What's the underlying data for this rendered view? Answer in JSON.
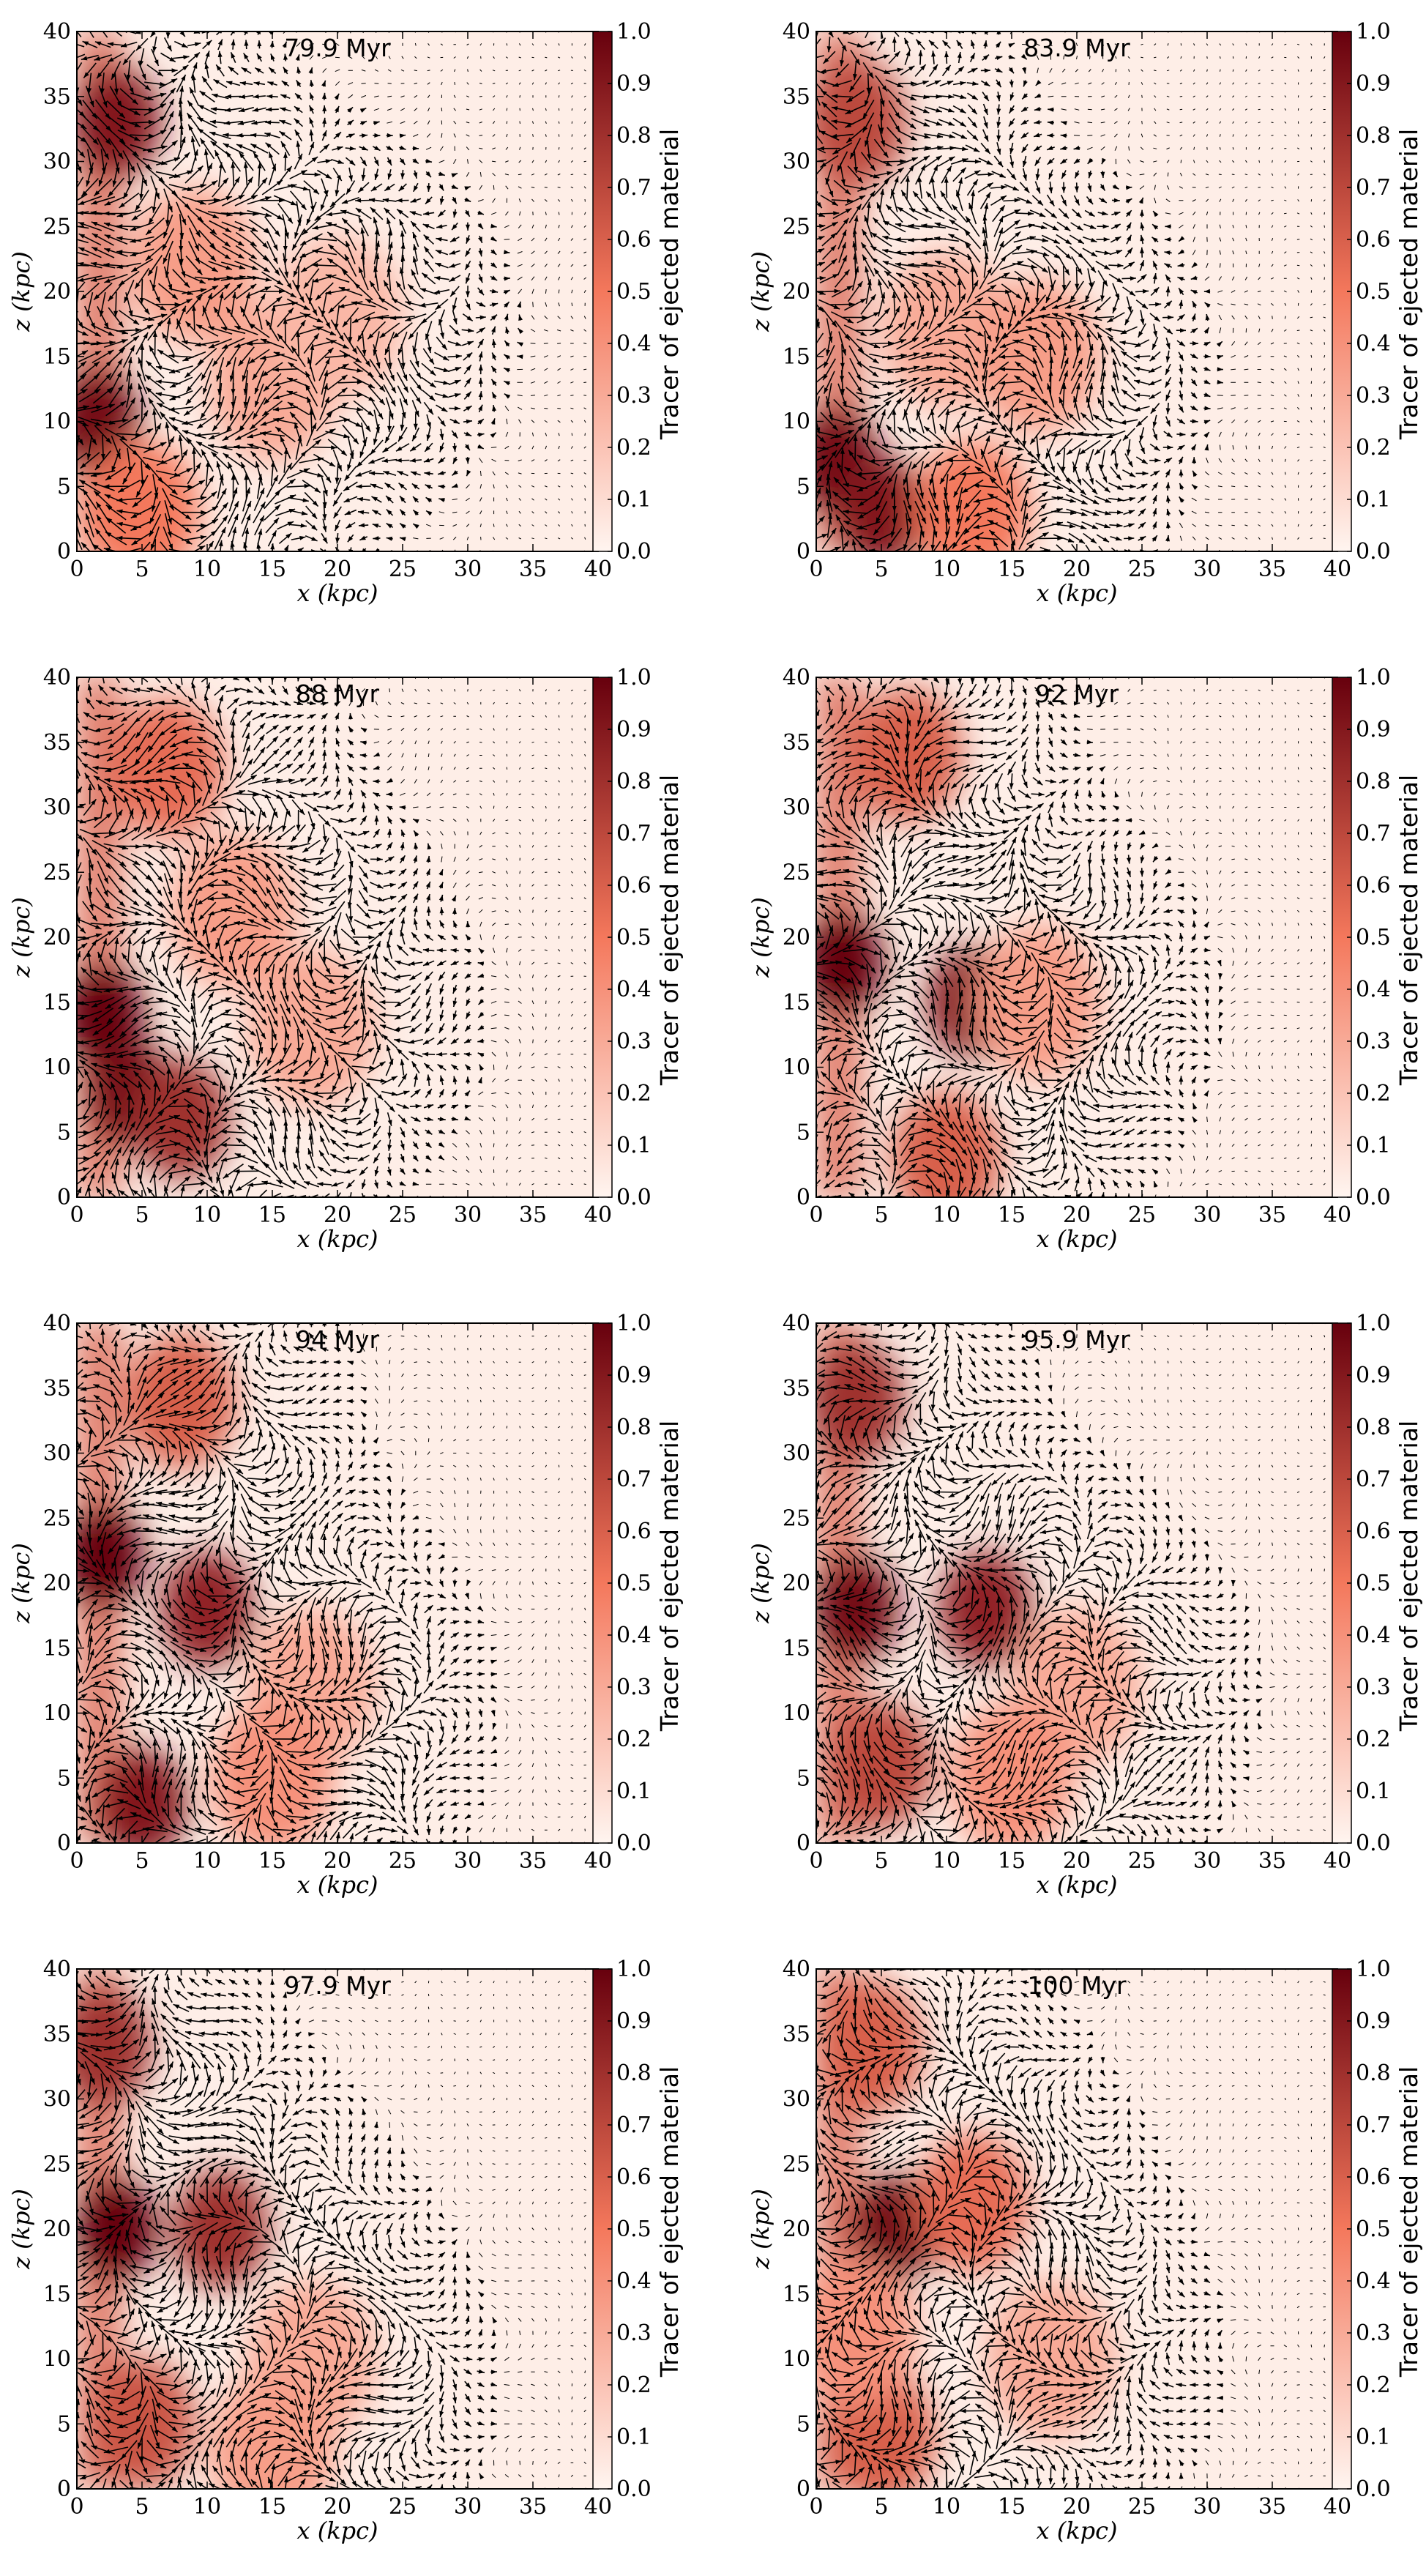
{
  "colorbar": {
    "label": "Tracer of ejected material",
    "ticks": [
      "0.0",
      "0.1",
      "0.2",
      "0.3",
      "0.4",
      "0.5",
      "0.6",
      "0.7",
      "0.8",
      "0.9",
      "1.0"
    ],
    "color_low": "#fff5f0",
    "color_mid": "#f4785c",
    "color_high": "#67000d"
  },
  "chart_data": [
    {
      "type": "heatmap",
      "title": "79.9 Myr",
      "xlabel": "x (kpc)",
      "ylabel": "z (kpc)",
      "xlim": [
        0,
        40
      ],
      "ylim": [
        0,
        40
      ],
      "xticks": [
        "0",
        "5",
        "10",
        "15",
        "20",
        "25",
        "30",
        "35",
        "40"
      ],
      "yticks": [
        "0",
        "5",
        "10",
        "15",
        "20",
        "25",
        "30",
        "35",
        "40"
      ],
      "blobs": [
        {
          "x": 3,
          "z": 33,
          "v": 0.9
        },
        {
          "x": 1.5,
          "z": 10,
          "v": 0.95
        },
        {
          "x": 9,
          "z": 22,
          "v": 0.35
        },
        {
          "x": 15,
          "z": 13,
          "v": 0.3
        },
        {
          "x": 20,
          "z": 18,
          "v": 0.25
        },
        {
          "x": 5,
          "z": 3,
          "v": 0.5
        }
      ]
    },
    {
      "type": "heatmap",
      "title": "83.9 Myr",
      "xlabel": "x (kpc)",
      "ylabel": "z (kpc)",
      "xlim": [
        0,
        40
      ],
      "ylim": [
        0,
        40
      ],
      "xticks": [
        "0",
        "5",
        "10",
        "15",
        "20",
        "25",
        "30",
        "35",
        "40"
      ],
      "yticks": [
        "0",
        "5",
        "10",
        "15",
        "20",
        "25",
        "30",
        "35",
        "40"
      ],
      "blobs": [
        {
          "x": 3,
          "z": 33,
          "v": 0.7
        },
        {
          "x": 1.5,
          "z": 7,
          "v": 0.95
        },
        {
          "x": 5,
          "z": 3,
          "v": 0.9
        },
        {
          "x": 10,
          "z": 17,
          "v": 0.3
        },
        {
          "x": 17,
          "z": 15,
          "v": 0.35
        },
        {
          "x": 12,
          "z": 3,
          "v": 0.5
        }
      ]
    },
    {
      "type": "heatmap",
      "title": "88 Myr",
      "xlabel": "x (kpc)",
      "ylabel": "z (kpc)",
      "xlim": [
        0,
        40
      ],
      "ylim": [
        0,
        40
      ],
      "xticks": [
        "0",
        "5",
        "10",
        "15",
        "20",
        "25",
        "30",
        "35",
        "40"
      ],
      "yticks": [
        "0",
        "5",
        "10",
        "15",
        "20",
        "25",
        "30",
        "35",
        "40"
      ],
      "blobs": [
        {
          "x": 2,
          "z": 14,
          "v": 1.0
        },
        {
          "x": 4,
          "z": 8,
          "v": 0.95
        },
        {
          "x": 7,
          "z": 33,
          "v": 0.55
        },
        {
          "x": 12,
          "z": 22,
          "v": 0.35
        },
        {
          "x": 18,
          "z": 13,
          "v": 0.3
        },
        {
          "x": 8,
          "z": 6,
          "v": 0.8
        }
      ]
    },
    {
      "type": "heatmap",
      "title": "92 Myr",
      "xlabel": "x (kpc)",
      "ylabel": "z (kpc)",
      "xlim": [
        0,
        40
      ],
      "ylim": [
        0,
        40
      ],
      "xticks": [
        "0",
        "5",
        "10",
        "15",
        "20",
        "25",
        "30",
        "35",
        "40"
      ],
      "yticks": [
        "0",
        "5",
        "10",
        "15",
        "20",
        "25",
        "30",
        "35",
        "40"
      ],
      "blobs": [
        {
          "x": 2,
          "z": 18,
          "v": 1.0
        },
        {
          "x": 12,
          "z": 15,
          "v": 0.9
        },
        {
          "x": 7,
          "z": 34,
          "v": 0.6
        },
        {
          "x": 17,
          "z": 15,
          "v": 0.35
        },
        {
          "x": 10,
          "z": 3,
          "v": 0.6
        }
      ]
    },
    {
      "type": "heatmap",
      "title": "94 Myr",
      "xlabel": "x (kpc)",
      "ylabel": "z (kpc)",
      "xlim": [
        0,
        40
      ],
      "ylim": [
        0,
        40
      ],
      "xticks": [
        "0",
        "5",
        "10",
        "15",
        "20",
        "25",
        "30",
        "35",
        "40"
      ],
      "yticks": [
        "0",
        "5",
        "10",
        "15",
        "20",
        "25",
        "30",
        "35",
        "40"
      ],
      "blobs": [
        {
          "x": 2,
          "z": 22,
          "v": 1.0
        },
        {
          "x": 10,
          "z": 18,
          "v": 0.85
        },
        {
          "x": 5,
          "z": 3,
          "v": 0.9
        },
        {
          "x": 8,
          "z": 34,
          "v": 0.6
        },
        {
          "x": 18,
          "z": 12,
          "v": 0.3
        },
        {
          "x": 15,
          "z": 5,
          "v": 0.4
        }
      ]
    },
    {
      "type": "heatmap",
      "title": "95.9 Myr",
      "xlabel": "x (kpc)",
      "ylabel": "z (kpc)",
      "xlim": [
        0,
        40
      ],
      "ylim": [
        0,
        40
      ],
      "xticks": [
        "0",
        "5",
        "10",
        "15",
        "20",
        "25",
        "30",
        "35",
        "40"
      ],
      "yticks": [
        "0",
        "5",
        "10",
        "15",
        "20",
        "25",
        "30",
        "35",
        "40"
      ],
      "blobs": [
        {
          "x": 3,
          "z": 18,
          "v": 0.95
        },
        {
          "x": 13,
          "z": 18,
          "v": 0.85
        },
        {
          "x": 3,
          "z": 34,
          "v": 0.8
        },
        {
          "x": 20,
          "z": 12,
          "v": 0.3
        },
        {
          "x": 5,
          "z": 6,
          "v": 0.7
        },
        {
          "x": 15,
          "z": 5,
          "v": 0.4
        }
      ]
    },
    {
      "type": "heatmap",
      "title": "97.9 Myr",
      "xlabel": "x (kpc)",
      "ylabel": "z (kpc)",
      "xlim": [
        0,
        40
      ],
      "ylim": [
        0,
        40
      ],
      "xticks": [
        "0",
        "5",
        "10",
        "15",
        "20",
        "25",
        "30",
        "35",
        "40"
      ],
      "yticks": [
        "0",
        "5",
        "10",
        "15",
        "20",
        "25",
        "30",
        "35",
        "40"
      ],
      "blobs": [
        {
          "x": 3,
          "z": 20,
          "v": 1.0
        },
        {
          "x": 11,
          "z": 20,
          "v": 0.8
        },
        {
          "x": 2,
          "z": 34,
          "v": 0.8
        },
        {
          "x": 18,
          "z": 10,
          "v": 0.3
        },
        {
          "x": 5,
          "z": 5,
          "v": 0.65
        },
        {
          "x": 15,
          "z": 3,
          "v": 0.35
        }
      ]
    },
    {
      "type": "heatmap",
      "title": "100 Myr",
      "xlabel": "x (kpc)",
      "ylabel": "z (kpc)",
      "xlim": [
        0,
        40
      ],
      "ylim": [
        0,
        40
      ],
      "xticks": [
        "0",
        "5",
        "10",
        "15",
        "20",
        "25",
        "30",
        "35",
        "40"
      ],
      "yticks": [
        "0",
        "5",
        "10",
        "15",
        "20",
        "25",
        "30",
        "35",
        "40"
      ],
      "blobs": [
        {
          "x": 6,
          "z": 20,
          "v": 0.95
        },
        {
          "x": 4,
          "z": 34,
          "v": 0.6
        },
        {
          "x": 12,
          "z": 22,
          "v": 0.55
        },
        {
          "x": 18,
          "z": 10,
          "v": 0.3
        },
        {
          "x": 5,
          "z": 4,
          "v": 0.6
        },
        {
          "x": 3,
          "z": 12,
          "v": 0.4
        }
      ]
    }
  ]
}
